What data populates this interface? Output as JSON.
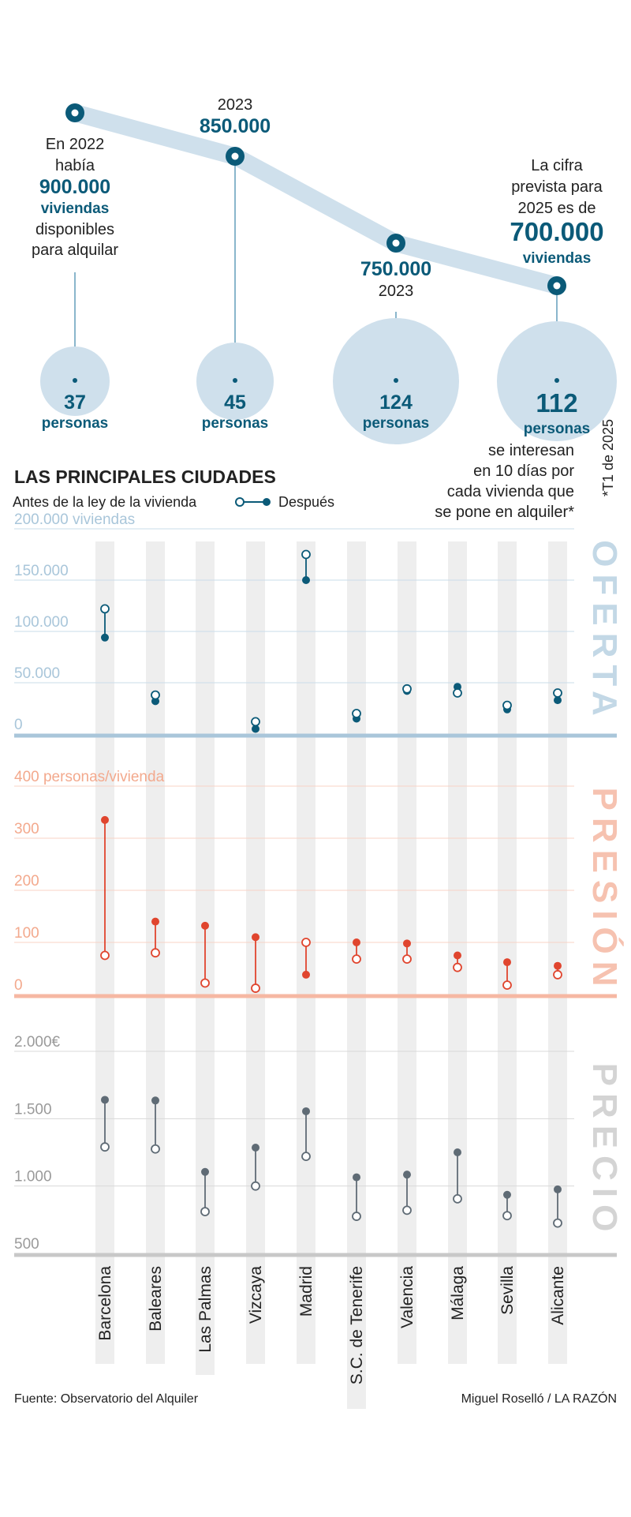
{
  "top": {
    "p2022": {
      "pre": "En 2022",
      "pre2": "había",
      "value": "900.000",
      "unit": "viviendas",
      "post1": "disponibles",
      "post2": "para alquilar"
    },
    "p2023a": {
      "year": "2023",
      "value": "850.000"
    },
    "p2023b": {
      "value": "750.000",
      "year": "2023"
    },
    "p2025": {
      "pre1": "La cifra",
      "pre2": "prevista para",
      "pre3": "2025 es de",
      "value": "700.000",
      "unit": "viviendas"
    },
    "bubbles": [
      {
        "num": "37",
        "label": "personas"
      },
      {
        "num": "45",
        "label": "personas"
      },
      {
        "num": "124",
        "label": "personas"
      },
      {
        "num": "112",
        "label": "personas"
      }
    ],
    "note": [
      "se interesan",
      "en 10 días por",
      "cada vivienda que",
      "se pone en alquiler*"
    ],
    "footnote": "*T1 de 2025"
  },
  "section_title": "LAS PRINCIPALES CIUDADES",
  "legend": {
    "before": "Antes de la ley de la vivienda",
    "after": "Después"
  },
  "colors": {
    "oferta": "#0b5a78",
    "oferta_light": "#a9c6da",
    "presion": "#e0452e",
    "presion_light": "#f6b8a3",
    "precio": "#5f6b75",
    "precio_light": "#c8c8c8",
    "band": "#eeeeee"
  },
  "chart_data": [
    {
      "type": "dumbbell",
      "title": "OFERTA",
      "ylabel": "viviendas",
      "ylim": [
        0,
        200000
      ],
      "yticks": [
        "0",
        "50.000",
        "100.000",
        "150.000",
        "200.000 viviendas"
      ],
      "categories": [
        "Barcelona",
        "Baleares",
        "Las Palmas",
        "Vizcaya",
        "Madrid",
        "S.C. de Tenerife",
        "Valencia",
        "Málaga",
        "Sevilla",
        "Alicante"
      ],
      "series": [
        {
          "name": "Antes de la ley de la vivienda",
          "values": [
            122000,
            38000,
            null,
            12000,
            175000,
            20000,
            44000,
            40000,
            28000,
            40000
          ]
        },
        {
          "name": "Después",
          "values": [
            94000,
            32000,
            null,
            5000,
            150000,
            15000,
            42000,
            46000,
            24000,
            33000
          ]
        }
      ]
    },
    {
      "type": "dumbbell",
      "title": "PRESIÓN",
      "ylabel": "personas/vivienda",
      "ylim": [
        0,
        400
      ],
      "yticks": [
        "0",
        "100",
        "200",
        "300",
        "400 personas/vivienda"
      ],
      "categories": [
        "Barcelona",
        "Baleares",
        "Las Palmas",
        "Vizcaya",
        "Madrid",
        "S.C. de Tenerife",
        "Valencia",
        "Málaga",
        "Sevilla",
        "Alicante"
      ],
      "series": [
        {
          "name": "Antes de la ley de la vivienda",
          "values": [
            75,
            80,
            22,
            12,
            100,
            68,
            68,
            52,
            18,
            38
          ]
        },
        {
          "name": "Después",
          "values": [
            335,
            140,
            132,
            110,
            38,
            100,
            98,
            75,
            62,
            55
          ]
        }
      ]
    },
    {
      "type": "dumbbell",
      "title": "PRECIO",
      "ylabel": "€",
      "ylim": [
        500,
        2000
      ],
      "yticks": [
        "500",
        "1.000",
        "1.500",
        "2.000€"
      ],
      "categories": [
        "Barcelona",
        "Baleares",
        "Las Palmas",
        "Vizcaya",
        "Madrid",
        "S.C. de Tenerife",
        "Valencia",
        "Málaga",
        "Sevilla",
        "Alicante"
      ],
      "series": [
        {
          "name": "Antes de la ley de la vivienda",
          "values": [
            1290,
            1275,
            810,
            1000,
            1220,
            775,
            820,
            905,
            780,
            725
          ]
        },
        {
          "name": "Después",
          "values": [
            1640,
            1635,
            1105,
            1285,
            1555,
            1065,
            1085,
            1250,
            935,
            975
          ]
        }
      ]
    }
  ],
  "source": "Fuente: Observatorio del Alquiler",
  "credit": "Miguel Roselló / LA RAZÓN"
}
